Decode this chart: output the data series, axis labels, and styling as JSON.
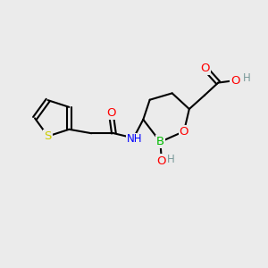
{
  "bg_color": "#ebebeb",
  "bond_color": "#000000",
  "bond_width": 1.5,
  "atom_colors": {
    "O": "#ff0000",
    "N": "#0000ff",
    "B": "#00bb00",
    "S": "#cccc00",
    "H_gray": "#7a9a9a"
  },
  "font_size": 8.5,
  "fig_size": [
    3.0,
    3.0
  ],
  "dpi": 100,
  "xlim": [
    0,
    10
  ],
  "ylim": [
    0,
    10
  ]
}
